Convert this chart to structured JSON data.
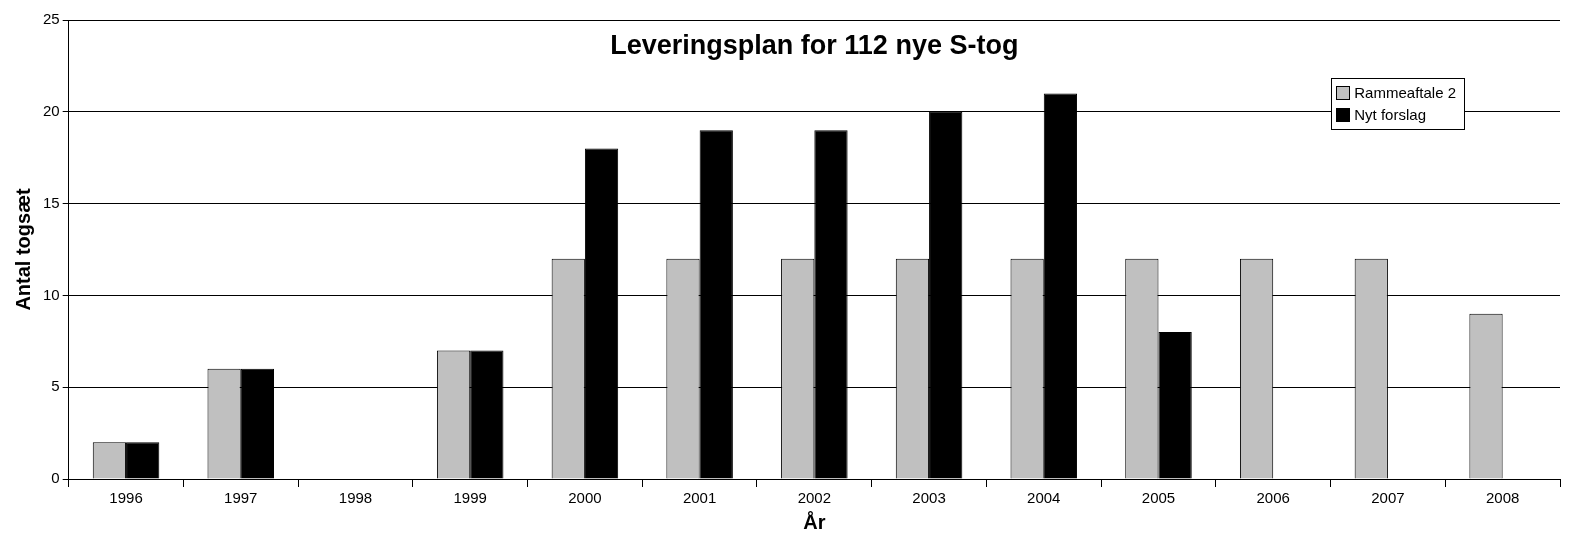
{
  "chart_data": {
    "type": "bar",
    "title": "Leveringsplan for 112 nye S-tog",
    "xlabel": "År",
    "ylabel": "Antal togsæt",
    "categories": [
      "1996",
      "1997",
      "1998",
      "1999",
      "2000",
      "2001",
      "2002",
      "2003",
      "2004",
      "2005",
      "2006",
      "2007",
      "2008"
    ],
    "series": [
      {
        "name": "Rammeaftale 2",
        "color": "#c0c0c0",
        "values": [
          2,
          6,
          0,
          7,
          12,
          12,
          12,
          12,
          12,
          12,
          12,
          12,
          9
        ]
      },
      {
        "name": "Nyt forslag",
        "color": "#000000",
        "values": [
          2,
          6,
          0,
          7,
          18,
          19,
          19,
          20,
          21,
          8,
          0,
          0,
          0
        ]
      }
    ],
    "ylim": [
      0,
      25
    ],
    "yticks": [
      0,
      5,
      10,
      15,
      20,
      25
    ],
    "grid": "y",
    "legend": "top right"
  }
}
